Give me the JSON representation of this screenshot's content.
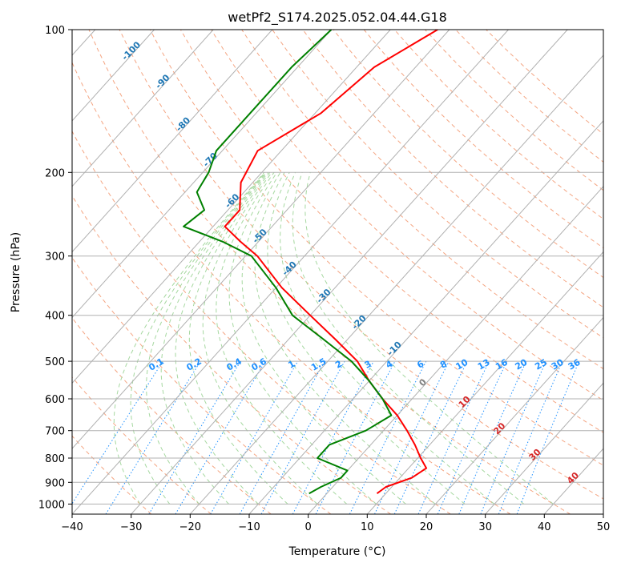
{
  "chart_data": {
    "type": "line",
    "title": "wetPf2_S174.2025.052.04.44.G18",
    "xlabel": "Temperature (°C)",
    "ylabel": "Pressure (hPa)",
    "xlim": [
      -40,
      50
    ],
    "ylim": [
      1050,
      100
    ],
    "y_scale": "log",
    "skew": true,
    "grid": true,
    "x_ticks": [
      "−40",
      "−30",
      "−20",
      "−10",
      "0",
      "10",
      "20",
      "30",
      "40",
      "50"
    ],
    "y_ticks": [
      {
        "p": 100,
        "label": "100"
      },
      {
        "p": 200,
        "label": "200"
      },
      {
        "p": 300,
        "label": "300"
      },
      {
        "p": 400,
        "label": "400"
      },
      {
        "p": 500,
        "label": "500"
      },
      {
        "p": 600,
        "label": "600"
      },
      {
        "p": 700,
        "label": "700"
      },
      {
        "p": 800,
        "label": "800"
      },
      {
        "p": 900,
        "label": "900"
      },
      {
        "p": 1000,
        "label": "1000"
      }
    ],
    "isotherm_labels": [
      {
        "t": -100,
        "p": 112,
        "text": "-100"
      },
      {
        "t": -90,
        "p": 130,
        "text": "-90"
      },
      {
        "t": -80,
        "p": 160,
        "text": "-80"
      },
      {
        "t": -70,
        "p": 190,
        "text": "-70"
      },
      {
        "t": -60,
        "p": 232,
        "text": "-60"
      },
      {
        "t": -50,
        "p": 275,
        "text": "-50"
      },
      {
        "t": -40,
        "p": 322,
        "text": "-40"
      },
      {
        "t": -30,
        "p": 368,
        "text": "-30"
      },
      {
        "t": -20,
        "p": 418,
        "text": "-20"
      },
      {
        "t": -10,
        "p": 475,
        "text": "-10"
      },
      {
        "t": 0,
        "p": 560,
        "text": "0"
      },
      {
        "t": 10,
        "p": 615,
        "text": "10"
      },
      {
        "t": 20,
        "p": 700,
        "text": "20"
      },
      {
        "t": 30,
        "p": 795,
        "text": "30"
      },
      {
        "t": 40,
        "p": 890,
        "text": "40"
      }
    ],
    "mixing_ratio_labels": [
      "0.1",
      "0.2",
      "0.4",
      "0.6",
      "1",
      "1.5",
      "2",
      "3",
      "4",
      "6",
      "8",
      "10",
      "13",
      "16",
      "20",
      "25",
      "30",
      "36"
    ],
    "colors": {
      "temperature": "#ff0000",
      "dewpoint": "#008000",
      "isotherm_label": "#1f77b4",
      "isotherm_label_warm": "#d62728",
      "zero_label": "#808080",
      "mixing_ratio": "#1e90ff",
      "dry_adiabat": "#f4a582",
      "moist_adiabat": "#a6d8a0",
      "grid": "#b0b0b0",
      "adiabat_thick": "#d2b48c"
    },
    "series": [
      {
        "kind": "temperature",
        "values": [
          {
            "p": 100,
            "t": -52
          },
          {
            "p": 120,
            "t": -57
          },
          {
            "p": 150,
            "t": -59
          },
          {
            "p": 180,
            "t": -64
          },
          {
            "p": 210,
            "t": -62
          },
          {
            "p": 240,
            "t": -58
          },
          {
            "p": 260,
            "t": -58
          },
          {
            "p": 280,
            "t": -53
          },
          {
            "p": 300,
            "t": -48
          },
          {
            "p": 350,
            "t": -39
          },
          {
            "p": 400,
            "t": -30
          },
          {
            "p": 450,
            "t": -22
          },
          {
            "p": 500,
            "t": -15
          },
          {
            "p": 550,
            "t": -10
          },
          {
            "p": 600,
            "t": -5
          },
          {
            "p": 650,
            "t": 0
          },
          {
            "p": 700,
            "t": 4
          },
          {
            "p": 750,
            "t": 7.5
          },
          {
            "p": 800,
            "t": 10.5
          },
          {
            "p": 840,
            "t": 13
          },
          {
            "p": 880,
            "t": 12
          },
          {
            "p": 920,
            "t": 9
          },
          {
            "p": 950,
            "t": 8.5
          }
        ]
      },
      {
        "kind": "dewpoint",
        "values": [
          {
            "p": 100,
            "t": -70
          },
          {
            "p": 120,
            "t": -71
          },
          {
            "p": 150,
            "t": -71
          },
          {
            "p": 180,
            "t": -71
          },
          {
            "p": 200,
            "t": -69
          },
          {
            "p": 220,
            "t": -68
          },
          {
            "p": 240,
            "t": -64
          },
          {
            "p": 260,
            "t": -65
          },
          {
            "p": 280,
            "t": -56
          },
          {
            "p": 300,
            "t": -49
          },
          {
            "p": 350,
            "t": -40
          },
          {
            "p": 400,
            "t": -33
          },
          {
            "p": 450,
            "t": -24
          },
          {
            "p": 500,
            "t": -16
          },
          {
            "p": 550,
            "t": -10
          },
          {
            "p": 600,
            "t": -5
          },
          {
            "p": 650,
            "t": -1
          },
          {
            "p": 700,
            "t": -3
          },
          {
            "p": 750,
            "t": -7
          },
          {
            "p": 800,
            "t": -7
          },
          {
            "p": 850,
            "t": 0
          },
          {
            "p": 880,
            "t": 0
          },
          {
            "p": 920,
            "t": -2
          },
          {
            "p": 950,
            "t": -3
          }
        ]
      }
    ]
  }
}
